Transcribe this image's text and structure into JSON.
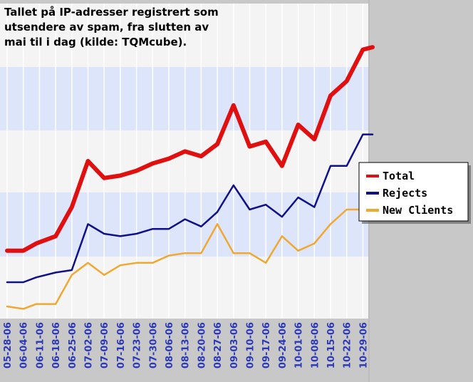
{
  "chart_data": {
    "type": "line",
    "title_lines": [
      "Tallet på IP-adresser registrert som",
      "utsendere av spam, fra slutten av",
      "mai til i dag (kilde: TQMcube)."
    ],
    "categories": [
      "05-28-06",
      "06-04-06",
      "06-11-06",
      "06-18-06",
      "06-25-06",
      "07-02-06",
      "07-09-06",
      "07-16-06",
      "07-23-06",
      "07-30-06",
      "08-06-06",
      "08-13-06",
      "08-20-06",
      "08-27-06",
      "09-03-06",
      "09-10-06",
      "09-17-06",
      "09-24-06",
      "10-01-06",
      "10-08-06",
      "10-15-06",
      "10-22-06",
      "10-29-06"
    ],
    "x": [
      0,
      1,
      1.8,
      3,
      4,
      5,
      6,
      7,
      8,
      9,
      10,
      11,
      12,
      13,
      14,
      15,
      16,
      17,
      18,
      19,
      20,
      21,
      22,
      22.6
    ],
    "series": [
      {
        "name": "Total",
        "color": "#e01010",
        "values": [
          28,
          28,
          31,
          34,
          46,
          65,
          58,
          59,
          61,
          64,
          66,
          69,
          67,
          72,
          88,
          71,
          73,
          63,
          80,
          74,
          92,
          98,
          111,
          112
        ]
      },
      {
        "name": "Rejects",
        "color": "#10108a",
        "values": [
          15,
          15,
          17,
          19,
          20,
          39,
          35,
          34,
          35,
          37,
          37,
          41,
          38,
          44,
          55,
          45,
          47,
          42,
          50,
          46,
          63,
          63,
          76,
          76
        ]
      },
      {
        "name": "New Clients",
        "color": "#f0a830",
        "values": [
          5,
          4,
          6,
          6,
          18,
          23,
          18,
          22,
          23,
          23,
          26,
          27,
          27,
          39,
          27,
          27,
          23,
          34,
          28,
          31,
          39,
          45,
          45,
          46
        ]
      }
    ],
    "ylim": [
      0,
      130
    ],
    "legend_position": "right",
    "grid": "horizontal bands and vertical lines"
  }
}
